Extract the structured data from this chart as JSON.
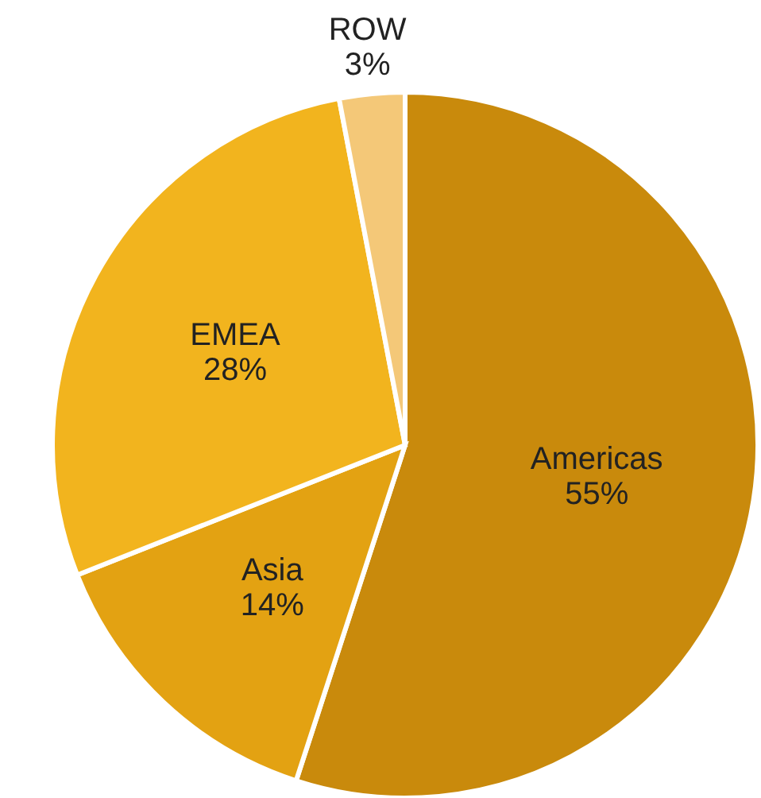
{
  "chart_data": {
    "type": "pie",
    "categories": [
      "Americas",
      "Asia",
      "EMEA",
      "ROW"
    ],
    "values": [
      55,
      14,
      28,
      3
    ],
    "value_labels": [
      "55%",
      "14%",
      "28%",
      "3%"
    ],
    "colors": [
      "#c98a0c",
      "#e3a212",
      "#f2b41e",
      "#f4c878"
    ]
  }
}
